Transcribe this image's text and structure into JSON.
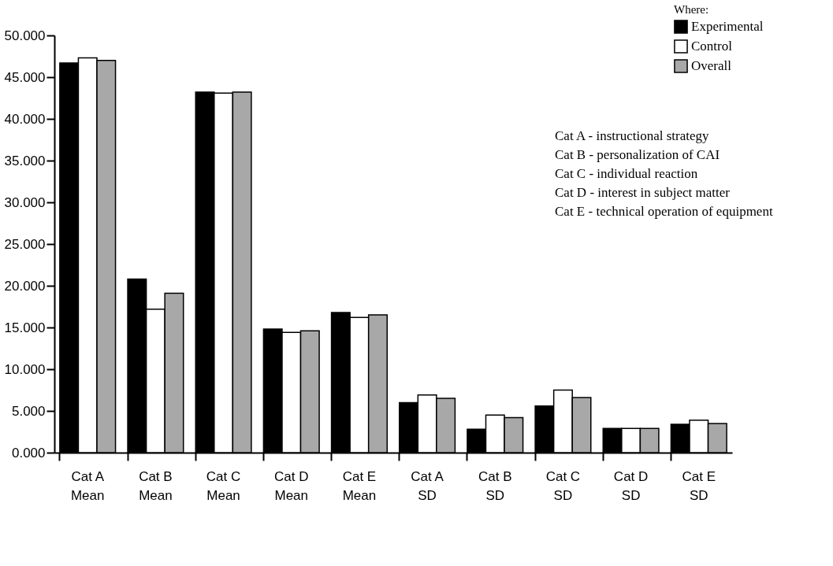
{
  "chart_data": {
    "type": "bar",
    "categories": [
      "Cat A\nMean",
      "Cat B\nMean",
      "Cat C\nMean",
      "Cat D\nMean",
      "Cat E\nMean",
      "Cat A\nSD",
      "Cat B\nSD",
      "Cat C\nSD",
      "Cat D\nSD",
      "Cat E\nSD"
    ],
    "series": [
      {
        "name": "Experimental",
        "color": "#000000",
        "values": [
          46.7,
          20.8,
          43.2,
          14.8,
          16.8,
          6.0,
          2.8,
          5.6,
          2.9,
          3.4
        ]
      },
      {
        "name": "Control",
        "color": "#ffffff",
        "values": [
          47.3,
          17.2,
          43.1,
          14.4,
          16.2,
          6.9,
          4.5,
          7.5,
          2.9,
          3.9
        ]
      },
      {
        "name": "Overall",
        "color": "#a8a8a8",
        "values": [
          47.0,
          19.1,
          43.2,
          14.6,
          16.5,
          6.5,
          4.2,
          6.6,
          2.9,
          3.5
        ]
      }
    ],
    "legend_title": "Where:",
    "legend": "top right",
    "annotations": [
      "Cat A - instructional strategy",
      "Cat B - personalization of CAI",
      "Cat C - individual reaction",
      "Cat D - interest in subject matter",
      "Cat E - technical operation of equipment"
    ],
    "ylim": [
      0,
      50
    ],
    "yticks": [
      {
        "value": 0,
        "label": "0.000"
      },
      {
        "value": 5,
        "label": "5.000"
      },
      {
        "value": 10,
        "label": "10.000"
      },
      {
        "value": 15,
        "label": "15.000"
      },
      {
        "value": 20,
        "label": "20.000"
      },
      {
        "value": 25,
        "label": "25.000"
      },
      {
        "value": 30,
        "label": "30.000"
      },
      {
        "value": 35,
        "label": "35.000"
      },
      {
        "value": 40,
        "label": "40.000"
      },
      {
        "value": 45,
        "label": "45.000"
      },
      {
        "value": 50,
        "label": "50.000"
      }
    ],
    "grid": false
  }
}
